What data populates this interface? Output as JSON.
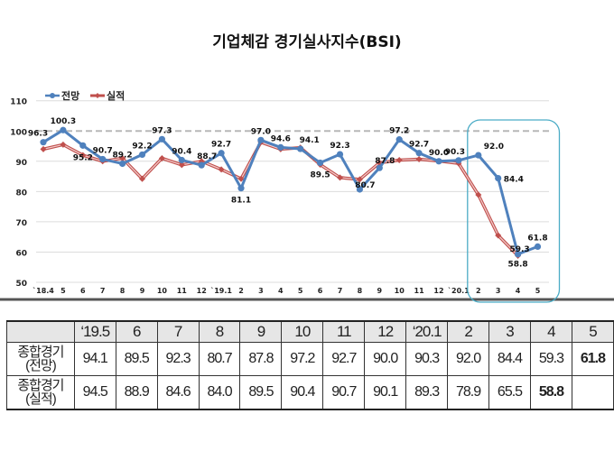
{
  "chart_data": {
    "type": "line",
    "title": "기업체감 경기실사지수(BSI)",
    "xlabel": "",
    "ylabel": "",
    "ylim": [
      50,
      110
    ],
    "yticks": [
      50,
      60,
      70,
      80,
      90,
      100,
      110
    ],
    "reference_line": 100,
    "legend_placement": "top-left",
    "categories": [
      "`18.4",
      "5",
      "6",
      "7",
      "8",
      "9",
      "10",
      "11",
      "12",
      "`19.1",
      "2",
      "3",
      "4",
      "5",
      "6",
      "7",
      "8",
      "9",
      "10",
      "11",
      "12",
      "`20.1",
      "2",
      "3",
      "4",
      "5"
    ],
    "series": [
      {
        "name": "전망",
        "color": "#4f81bd",
        "values": [
          96.3,
          100.3,
          95.2,
          90.7,
          89.2,
          92.2,
          97.3,
          90.4,
          88.7,
          92.7,
          81.1,
          97.0,
          94.6,
          94.1,
          89.5,
          92.3,
          80.7,
          87.8,
          97.2,
          92.7,
          90.0,
          90.3,
          92.0,
          84.4,
          59.3,
          61.8
        ],
        "labels": [
          "96.3",
          "100.3",
          "95.2",
          "90.7",
          "89.2",
          "92.2",
          "97.3",
          "90.4",
          "88.7",
          "92.7",
          "81.1",
          "97.0",
          "94.6",
          "94.1",
          "89.5",
          "92.3",
          "80.7",
          "87.8",
          "97.2",
          "92.7",
          "90.0",
          "90.3",
          "92.0",
          "84.4",
          "59.3",
          "61.8"
        ]
      },
      {
        "name": "실적",
        "color": "#c0504d",
        "values": [
          94.0,
          95.5,
          92.0,
          90.0,
          91.0,
          84.2,
          91.0,
          88.8,
          90.0,
          87.3,
          84.2,
          96.3,
          94.0,
          94.5,
          88.9,
          84.6,
          84.0,
          89.5,
          90.4,
          90.7,
          90.1,
          89.3,
          78.9,
          65.5,
          58.8,
          null
        ],
        "labels": [
          null,
          null,
          null,
          null,
          null,
          null,
          null,
          null,
          null,
          null,
          null,
          null,
          null,
          null,
          null,
          null,
          null,
          null,
          null,
          null,
          null,
          null,
          null,
          null,
          "58.8",
          null
        ]
      }
    ],
    "highlight_range": [
      "2",
      "5"
    ]
  },
  "table": {
    "header": [
      "",
      "‘19.5",
      "6",
      "7",
      "8",
      "9",
      "10",
      "11",
      "12",
      "‘20.1",
      "2",
      "3",
      "4",
      "5"
    ],
    "rows": [
      {
        "label_top": "종합경기",
        "label_bottom": "(전망)",
        "values": [
          "94.1",
          "89.5",
          "92.3",
          "80.7",
          "87.8",
          "97.2",
          "92.7",
          "90.0",
          "90.3",
          "92.0",
          "84.4",
          "59.3",
          "61.8"
        ]
      },
      {
        "label_top": "종합경기",
        "label_bottom": "(실적)",
        "values": [
          "94.5",
          "88.9",
          "84.6",
          "84.0",
          "89.5",
          "90.4",
          "90.7",
          "90.1",
          "89.3",
          "78.9",
          "65.5",
          "58.8",
          ""
        ]
      }
    ]
  }
}
